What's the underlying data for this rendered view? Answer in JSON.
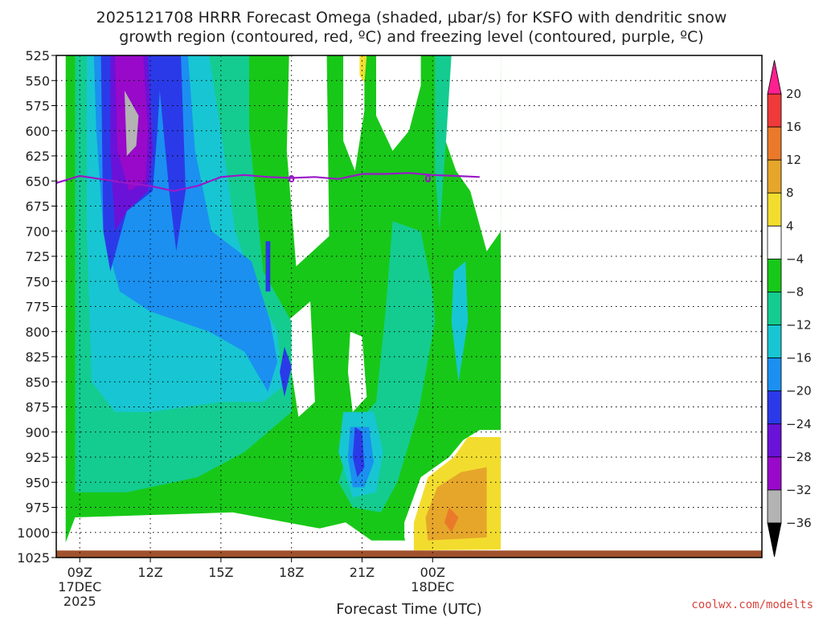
{
  "chart_data": {
    "type": "heatmap",
    "title_lines": [
      "2025121708 HRRR Forecast Omega (shaded, μbar/s) for KSFO with dendritic snow",
      "growth region (contoured, red, ºC) and freezing level (contoured, purple, ºC)"
    ],
    "xlabel": "Forecast Time (UTC)",
    "credit": "coolwx.com/modelts",
    "x_range_hours": [
      -1,
      29
    ],
    "x_ticks": [
      {
        "hour": 0,
        "lines": [
          "09Z",
          "17DEC",
          "2025"
        ]
      },
      {
        "hour": 3,
        "lines": [
          "12Z"
        ]
      },
      {
        "hour": 6,
        "lines": [
          "15Z"
        ]
      },
      {
        "hour": 9,
        "lines": [
          "18Z"
        ]
      },
      {
        "hour": 12,
        "lines": [
          "21Z"
        ]
      },
      {
        "hour": 15,
        "lines": [
          "00Z",
          "18DEC"
        ]
      }
    ],
    "y_range_hpa": [
      525,
      1025
    ],
    "y_ticks": [
      525,
      550,
      575,
      600,
      625,
      650,
      675,
      700,
      725,
      750,
      775,
      800,
      825,
      850,
      875,
      900,
      925,
      950,
      975,
      1000,
      1025
    ],
    "grid": true,
    "colorbar": {
      "levels": [
        -36,
        -32,
        -28,
        -24,
        -20,
        -16,
        -12,
        -8,
        -4,
        4,
        8,
        12,
        16,
        20
      ],
      "labels": [
        "20",
        "16",
        "12",
        "8",
        "4",
        "−4",
        "−8",
        "−12",
        "−16",
        "−20",
        "−24",
        "−28",
        "−32",
        "−36"
      ],
      "colors": [
        "#b3b3b3",
        "#9909c9",
        "#6a12d8",
        "#2b3ae8",
        "#1b90f0",
        "#17c6d2",
        "#14cc90",
        "#18c818",
        "#ffffff",
        "#f2dd2e",
        "#e6a62a",
        "#ea7a2a",
        "#ef3a3a",
        "#ff2090"
      ],
      "under_color": "#000000",
      "over_color": "#ff2090"
    },
    "freezing_level": {
      "label": "0",
      "color": "#9a18c8",
      "points": [
        [
          -1,
          652
        ],
        [
          0,
          645
        ],
        [
          2,
          652
        ],
        [
          3,
          655
        ],
        [
          4,
          660
        ],
        [
          5,
          655
        ],
        [
          6,
          646
        ],
        [
          7,
          644
        ],
        [
          8,
          646
        ],
        [
          9,
          647
        ],
        [
          10,
          646
        ],
        [
          11,
          648
        ],
        [
          12,
          643
        ],
        [
          13,
          643
        ],
        [
          14,
          642
        ],
        [
          15,
          644
        ],
        [
          16,
          645
        ],
        [
          17,
          646
        ]
      ]
    },
    "omega_fields": [
      {
        "color": "#18c818",
        "points": [
          [
            -0.6,
            525
          ],
          [
            17.9,
            525
          ],
          [
            17.9,
            1005
          ],
          [
            14,
            1008
          ],
          [
            12.4,
            1008
          ],
          [
            11.3,
            990
          ],
          [
            10.2,
            996
          ],
          [
            6.5,
            980
          ],
          [
            -0.2,
            985
          ],
          [
            -0.6,
            1010
          ]
        ]
      },
      {
        "color": "#ffffff",
        "points": [
          [
            8.9,
            525
          ],
          [
            10.5,
            525
          ],
          [
            10.6,
            705
          ],
          [
            9.2,
            735
          ],
          [
            8.8,
            620
          ]
        ]
      },
      {
        "color": "#ffffff",
        "points": [
          [
            11.2,
            525
          ],
          [
            12.1,
            525
          ],
          [
            12.1,
            580
          ],
          [
            11.7,
            640
          ],
          [
            11.2,
            610
          ]
        ]
      },
      {
        "color": "#ffffff",
        "points": [
          [
            12.6,
            525
          ],
          [
            14.5,
            525
          ],
          [
            14.5,
            555
          ],
          [
            14.0,
            600
          ],
          [
            13.3,
            620
          ],
          [
            12.6,
            585
          ]
        ]
      },
      {
        "color": "#ffffff",
        "points": [
          [
            15.4,
            525
          ],
          [
            17.9,
            525
          ],
          [
            17.9,
            700
          ],
          [
            17.3,
            720
          ],
          [
            16.6,
            660
          ],
          [
            16.0,
            640
          ],
          [
            15.4,
            600
          ]
        ]
      },
      {
        "color": "#f2dd2e",
        "points": [
          [
            11.9,
            525
          ],
          [
            12.2,
            525
          ],
          [
            12.1,
            552
          ],
          [
            11.9,
            545
          ]
        ]
      },
      {
        "color": "#ffffff",
        "points": [
          [
            8.8,
            790
          ],
          [
            9.8,
            770
          ],
          [
            10.0,
            870
          ],
          [
            9.3,
            885
          ],
          [
            9.0,
            840
          ]
        ]
      },
      {
        "color": "#ffffff",
        "points": [
          [
            11.5,
            800
          ],
          [
            12.0,
            805
          ],
          [
            12.2,
            865
          ],
          [
            11.6,
            880
          ],
          [
            11.4,
            840
          ]
        ]
      },
      {
        "color": "#14cc90",
        "points": [
          [
            -0.2,
            525
          ],
          [
            7.2,
            525
          ],
          [
            7.2,
            600
          ],
          [
            7.8,
            740
          ],
          [
            9.0,
            790
          ],
          [
            9.0,
            880
          ],
          [
            7.0,
            920
          ],
          [
            5.0,
            945
          ],
          [
            2.0,
            960
          ],
          [
            -0.2,
            960
          ]
        ]
      },
      {
        "color": "#14cc90",
        "points": [
          [
            15.1,
            525
          ],
          [
            15.8,
            525
          ],
          [
            15.6,
            600
          ],
          [
            15.3,
            700
          ],
          [
            15.1,
            640
          ]
        ]
      },
      {
        "color": "#14cc90",
        "points": [
          [
            13.3,
            690
          ],
          [
            14.5,
            700
          ],
          [
            15.0,
            760
          ],
          [
            15.1,
            790
          ],
          [
            14.4,
            880
          ],
          [
            13.5,
            950
          ],
          [
            12.8,
            980
          ],
          [
            11.6,
            975
          ],
          [
            11.0,
            950
          ],
          [
            11.8,
            890
          ],
          [
            12.6,
            870
          ],
          [
            13.0,
            780
          ]
        ]
      },
      {
        "color": "#17c6d2",
        "points": [
          [
            0.3,
            525
          ],
          [
            5.5,
            525
          ],
          [
            6.0,
            600
          ],
          [
            6.6,
            700
          ],
          [
            7.5,
            760
          ],
          [
            8.4,
            800
          ],
          [
            8.6,
            855
          ],
          [
            7.8,
            870
          ],
          [
            6.0,
            870
          ],
          [
            3.0,
            880
          ],
          [
            1.5,
            880
          ],
          [
            0.5,
            850
          ],
          [
            0.3,
            700
          ]
        ]
      },
      {
        "color": "#17c6d2",
        "points": [
          [
            15.9,
            740
          ],
          [
            16.4,
            730
          ],
          [
            16.5,
            790
          ],
          [
            16.1,
            850
          ],
          [
            15.8,
            790
          ]
        ]
      },
      {
        "color": "#17c6d2",
        "points": [
          [
            11.2,
            880
          ],
          [
            12.5,
            880
          ],
          [
            12.9,
            920
          ],
          [
            12.6,
            960
          ],
          [
            11.6,
            965
          ],
          [
            11.0,
            920
          ]
        ]
      },
      {
        "color": "#1b90f0",
        "points": [
          [
            0.6,
            525
          ],
          [
            4.6,
            525
          ],
          [
            4.9,
            620
          ],
          [
            5.6,
            700
          ],
          [
            7.3,
            730
          ],
          [
            8.1,
            790
          ],
          [
            8.4,
            830
          ],
          [
            8.0,
            860
          ],
          [
            7.0,
            820
          ],
          [
            5.5,
            800
          ],
          [
            3.0,
            780
          ],
          [
            1.7,
            760
          ],
          [
            1.0,
            700
          ],
          [
            0.7,
            600
          ]
        ]
      },
      {
        "color": "#1b90f0",
        "points": [
          [
            11.5,
            895
          ],
          [
            12.3,
            895
          ],
          [
            12.5,
            930
          ],
          [
            12.1,
            955
          ],
          [
            11.6,
            955
          ],
          [
            11.4,
            925
          ]
        ]
      },
      {
        "color": "#2b3ae8",
        "points": [
          [
            0.9,
            525
          ],
          [
            4.3,
            525
          ],
          [
            4.5,
            660
          ],
          [
            4.1,
            720
          ],
          [
            3.8,
            660
          ],
          [
            3.4,
            560
          ],
          [
            3.3,
            600
          ],
          [
            3.1,
            660
          ],
          [
            2.0,
            680
          ],
          [
            1.3,
            740
          ],
          [
            1.0,
            700
          ]
        ]
      },
      {
        "color": "#2b3ae8",
        "points": [
          [
            7.9,
            710
          ],
          [
            8.1,
            710
          ],
          [
            8.1,
            760
          ],
          [
            7.9,
            760
          ]
        ]
      },
      {
        "color": "#2b3ae8",
        "points": [
          [
            8.7,
            815
          ],
          [
            9.0,
            835
          ],
          [
            8.7,
            865
          ],
          [
            8.5,
            840
          ]
        ]
      },
      {
        "color": "#2b3ae8",
        "points": [
          [
            11.7,
            895
          ],
          [
            12.0,
            900
          ],
          [
            12.1,
            935
          ],
          [
            11.8,
            945
          ],
          [
            11.6,
            925
          ]
        ]
      },
      {
        "color": "#6a12d8",
        "points": [
          [
            1.3,
            525
          ],
          [
            2.9,
            525
          ],
          [
            3.1,
            620
          ],
          [
            2.9,
            660
          ],
          [
            2.0,
            680
          ],
          [
            1.5,
            700
          ],
          [
            1.3,
            620
          ]
        ]
      },
      {
        "color": "#9909c9",
        "points": [
          [
            1.5,
            525
          ],
          [
            2.7,
            525
          ],
          [
            2.9,
            600
          ],
          [
            2.8,
            650
          ],
          [
            2.1,
            660
          ],
          [
            1.6,
            620
          ]
        ]
      },
      {
        "color": "#b3b3b3",
        "points": [
          [
            1.9,
            560
          ],
          [
            2.5,
            585
          ],
          [
            2.4,
            615
          ],
          [
            2.0,
            625
          ]
        ]
      },
      {
        "color": "#ffffff",
        "points": [
          [
            13.8,
            990
          ],
          [
            14.5,
            945
          ],
          [
            15.7,
            925
          ],
          [
            16.3,
            908
          ],
          [
            17.0,
            898
          ],
          [
            17.9,
            898
          ],
          [
            17.9,
            1018
          ],
          [
            14.0,
            1020
          ],
          [
            13.8,
            1005
          ]
        ]
      },
      {
        "color": "#f2dd2e",
        "points": [
          [
            14.2,
            990
          ],
          [
            14.8,
            945
          ],
          [
            15.9,
            925
          ],
          [
            16.5,
            905
          ],
          [
            17.9,
            905
          ],
          [
            17.9,
            1017
          ],
          [
            14.2,
            1018
          ]
        ]
      },
      {
        "color": "#e6a62a",
        "points": [
          [
            14.7,
            985
          ],
          [
            15.2,
            955
          ],
          [
            16.2,
            940
          ],
          [
            17.3,
            935
          ],
          [
            17.3,
            1005
          ],
          [
            14.8,
            1008
          ]
        ]
      },
      {
        "color": "#ea7a2a",
        "points": [
          [
            15.5,
            990
          ],
          [
            15.7,
            975
          ],
          [
            16.1,
            985
          ],
          [
            15.8,
            1000
          ]
        ]
      }
    ],
    "ground_band": {
      "color": "#a0522d",
      "from_hpa": 1018,
      "to_hpa": 1025
    }
  }
}
